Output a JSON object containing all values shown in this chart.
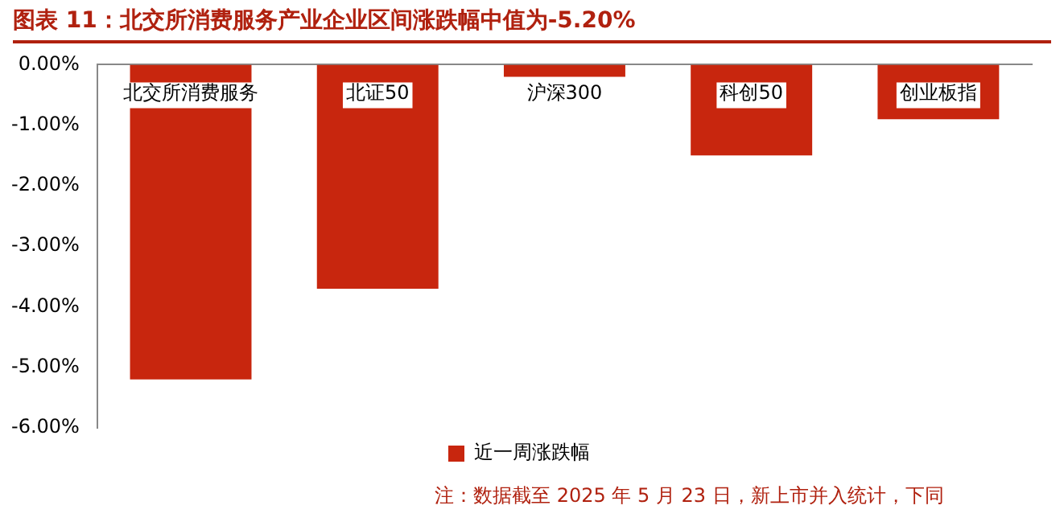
{
  "chart_data": {
    "type": "bar",
    "title": "图表 11：北交所消费服务产业企业区间涨跌幅中值为-5.20%",
    "categories": [
      "北交所消费服务",
      "北证50",
      "沪深300",
      "科创50",
      "创业板指"
    ],
    "series": [
      {
        "name": "近一周涨跌幅",
        "color": "#c8260e",
        "values": [
          -5.2,
          -3.7,
          -0.2,
          -1.5,
          -0.9
        ]
      }
    ],
    "ylim": [
      -6,
      0
    ],
    "yticks": [
      {
        "value": 0,
        "label": "0.00%"
      },
      {
        "value": -1,
        "label": "-1.00%"
      },
      {
        "value": -2,
        "label": "-2.00%"
      },
      {
        "value": -3,
        "label": "-3.00%"
      },
      {
        "value": -4,
        "label": "-4.00%"
      },
      {
        "value": -5,
        "label": "-5.00%"
      },
      {
        "value": -6,
        "label": "-6.00%"
      }
    ],
    "grid": false,
    "legend": "bottom",
    "annotations": [
      "注：数据截至 2025 年 5 月 23 日，新上市并入统计，下同"
    ]
  }
}
